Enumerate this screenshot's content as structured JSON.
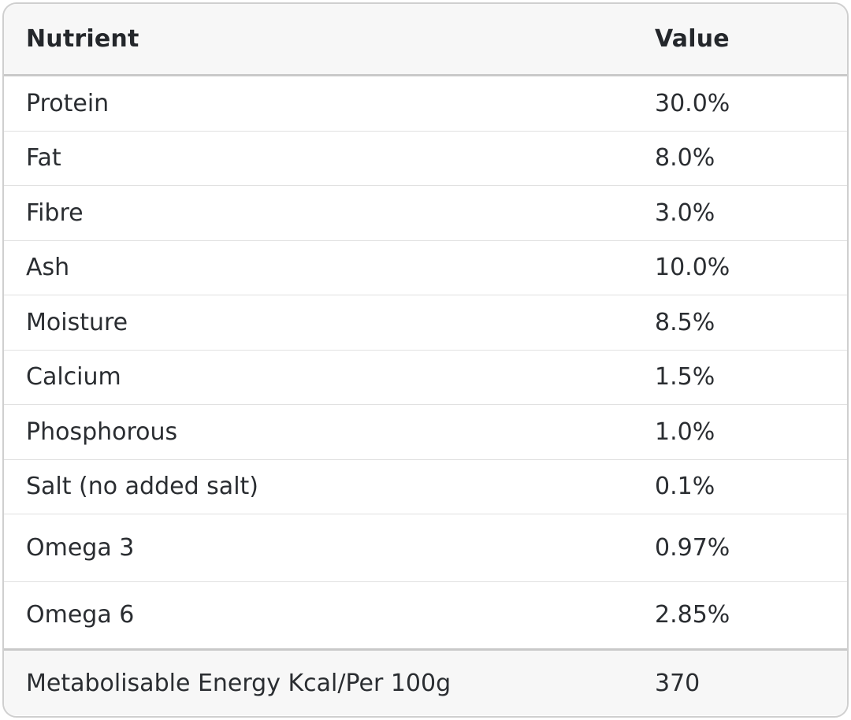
{
  "table": {
    "headers": [
      "Nutrient",
      "Value"
    ],
    "rows": [
      {
        "nutrient": "Protein",
        "value": "30.0%"
      },
      {
        "nutrient": "Fat",
        "value": "8.0%"
      },
      {
        "nutrient": "Fibre",
        "value": "3.0%"
      },
      {
        "nutrient": "Ash",
        "value": "10.0%"
      },
      {
        "nutrient": "Moisture",
        "value": "8.5%"
      },
      {
        "nutrient": "Calcium",
        "value": "1.5%"
      },
      {
        "nutrient": "Phosphorous",
        "value": "1.0%"
      },
      {
        "nutrient": "Salt (no added salt)",
        "value": "0.1%"
      },
      {
        "nutrient": "Omega 3",
        "value": "0.97%"
      },
      {
        "nutrient": "Omega 6",
        "value": "2.85%"
      }
    ],
    "footer": {
      "nutrient": "Metabolisable Energy Kcal/Per 100g",
      "value": "370"
    }
  }
}
